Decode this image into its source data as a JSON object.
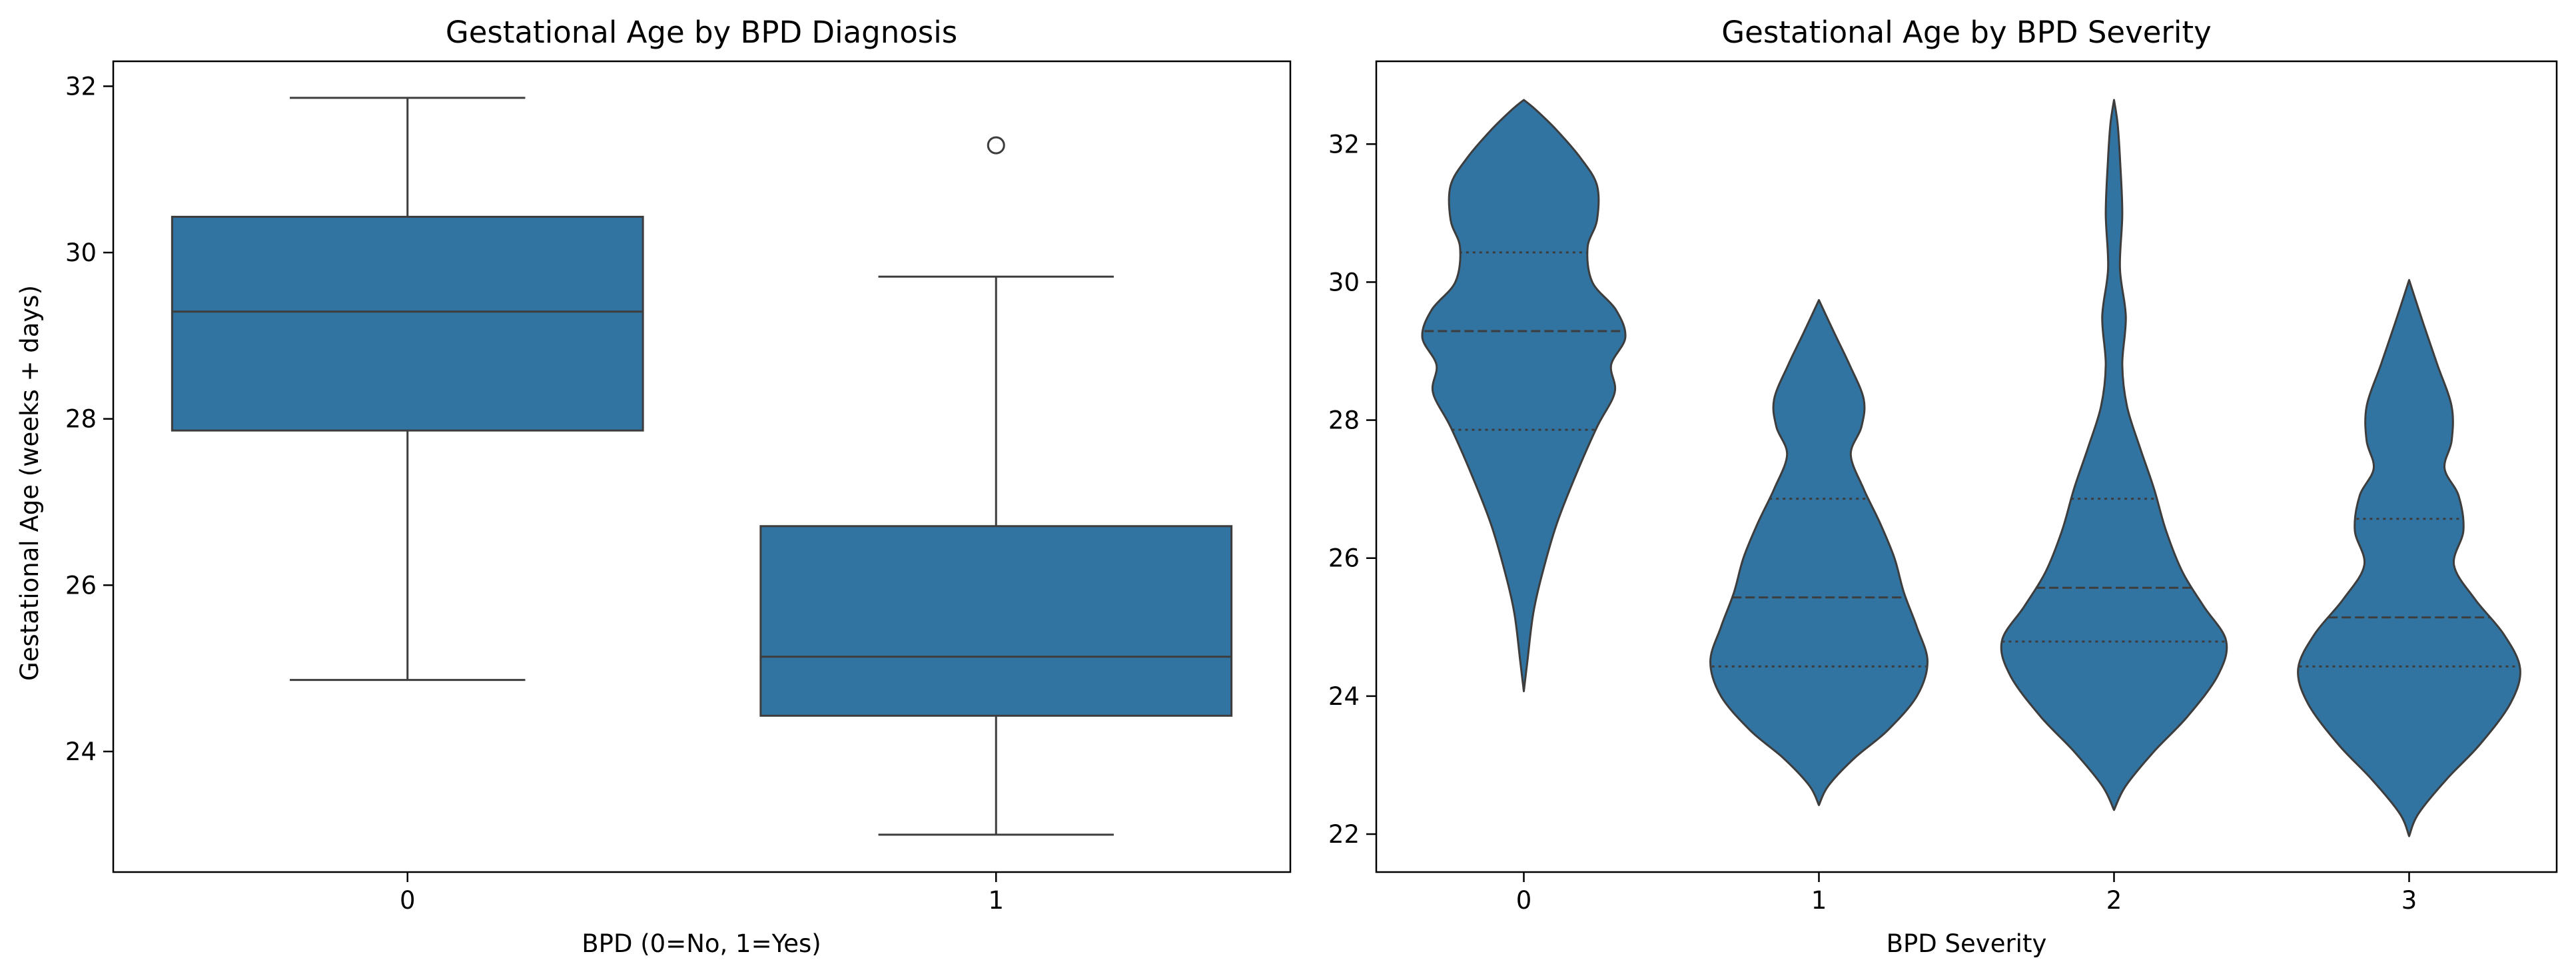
{
  "colors": {
    "fill": "#3274a1",
    "line": "#3d3d3d",
    "frame": "#000000",
    "background": "#ffffff"
  },
  "chart_data": [
    {
      "type": "box",
      "title": "Gestational Age by BPD Diagnosis",
      "xlabel": "BPD (0=No, 1=Yes)",
      "ylabel": "Gestational Age (weeks + days)",
      "categories": [
        "0",
        "1"
      ],
      "ylim": [
        22.55,
        32.3
      ],
      "yticks": [
        24,
        26,
        28,
        30,
        32
      ],
      "ytick_labels": [
        "24",
        "26",
        "28",
        "30",
        "32"
      ],
      "grid": false,
      "boxes": [
        {
          "category": "0",
          "whisker_low": 24.86,
          "q1": 27.86,
          "median": 29.29,
          "q3": 30.43,
          "whisker_high": 31.86,
          "outliers": []
        },
        {
          "category": "1",
          "whisker_low": 23.0,
          "q1": 24.43,
          "median": 25.14,
          "q3": 26.71,
          "whisker_high": 29.71,
          "outliers": [
            31.29
          ]
        }
      ]
    },
    {
      "type": "violin",
      "title": "Gestational Age by BPD Severity",
      "xlabel": "BPD Severity",
      "ylabel": "",
      "categories": [
        "0",
        "1",
        "2",
        "3"
      ],
      "ylim": [
        21.45,
        33.2
      ],
      "yticks": [
        22,
        24,
        26,
        28,
        30,
        32
      ],
      "ytick_labels": [
        "22",
        "24",
        "26",
        "28",
        "30",
        "32"
      ],
      "grid": false,
      "violins": [
        {
          "category": "0",
          "q1": 27.86,
          "median": 29.29,
          "q3": 30.43,
          "profile": [
            [
              24.07,
              0.0
            ],
            [
              24.5,
              0.03
            ],
            [
              25.2,
              0.08
            ],
            [
              25.8,
              0.16
            ],
            [
              26.5,
              0.28
            ],
            [
              27.2,
              0.44
            ],
            [
              27.9,
              0.62
            ],
            [
              28.4,
              0.77
            ],
            [
              28.8,
              0.74
            ],
            [
              29.2,
              0.86
            ],
            [
              29.6,
              0.78
            ],
            [
              30.0,
              0.58
            ],
            [
              30.5,
              0.54
            ],
            [
              30.9,
              0.62
            ],
            [
              31.4,
              0.62
            ],
            [
              31.8,
              0.48
            ],
            [
              32.2,
              0.28
            ],
            [
              32.5,
              0.1
            ],
            [
              32.64,
              0.0
            ]
          ]
        },
        {
          "category": "1",
          "q1": 24.43,
          "median": 25.43,
          "q3": 26.86,
          "profile": [
            [
              22.42,
              0.0
            ],
            [
              22.7,
              0.08
            ],
            [
              23.1,
              0.3
            ],
            [
              23.5,
              0.58
            ],
            [
              24.0,
              0.83
            ],
            [
              24.5,
              0.92
            ],
            [
              25.0,
              0.83
            ],
            [
              25.5,
              0.72
            ],
            [
              26.0,
              0.64
            ],
            [
              26.5,
              0.52
            ],
            [
              27.0,
              0.38
            ],
            [
              27.5,
              0.27
            ],
            [
              27.9,
              0.36
            ],
            [
              28.3,
              0.38
            ],
            [
              28.8,
              0.26
            ],
            [
              29.3,
              0.12
            ],
            [
              29.74,
              0.0
            ]
          ]
        },
        {
          "category": "2",
          "q1": 24.79,
          "median": 25.57,
          "q3": 26.86,
          "profile": [
            [
              22.35,
              0.0
            ],
            [
              22.7,
              0.1
            ],
            [
              23.2,
              0.34
            ],
            [
              23.7,
              0.62
            ],
            [
              24.3,
              0.88
            ],
            [
              24.8,
              0.95
            ],
            [
              25.3,
              0.76
            ],
            [
              25.8,
              0.58
            ],
            [
              26.4,
              0.44
            ],
            [
              27.0,
              0.34
            ],
            [
              27.6,
              0.22
            ],
            [
              28.2,
              0.11
            ],
            [
              28.8,
              0.07
            ],
            [
              29.5,
              0.1
            ],
            [
              30.2,
              0.05
            ],
            [
              31.0,
              0.07
            ],
            [
              31.8,
              0.05
            ],
            [
              32.3,
              0.03
            ],
            [
              32.64,
              0.0
            ]
          ]
        },
        {
          "category": "3",
          "q1": 24.43,
          "median": 25.14,
          "q3": 26.57,
          "profile": [
            [
              21.97,
              0.0
            ],
            [
              22.3,
              0.08
            ],
            [
              22.8,
              0.32
            ],
            [
              23.3,
              0.6
            ],
            [
              23.9,
              0.86
            ],
            [
              24.4,
              0.94
            ],
            [
              24.9,
              0.8
            ],
            [
              25.4,
              0.56
            ],
            [
              25.9,
              0.38
            ],
            [
              26.4,
              0.46
            ],
            [
              26.9,
              0.42
            ],
            [
              27.3,
              0.3
            ],
            [
              27.7,
              0.36
            ],
            [
              28.2,
              0.36
            ],
            [
              28.8,
              0.24
            ],
            [
              29.4,
              0.12
            ],
            [
              30.03,
              0.0
            ]
          ]
        }
      ]
    }
  ]
}
